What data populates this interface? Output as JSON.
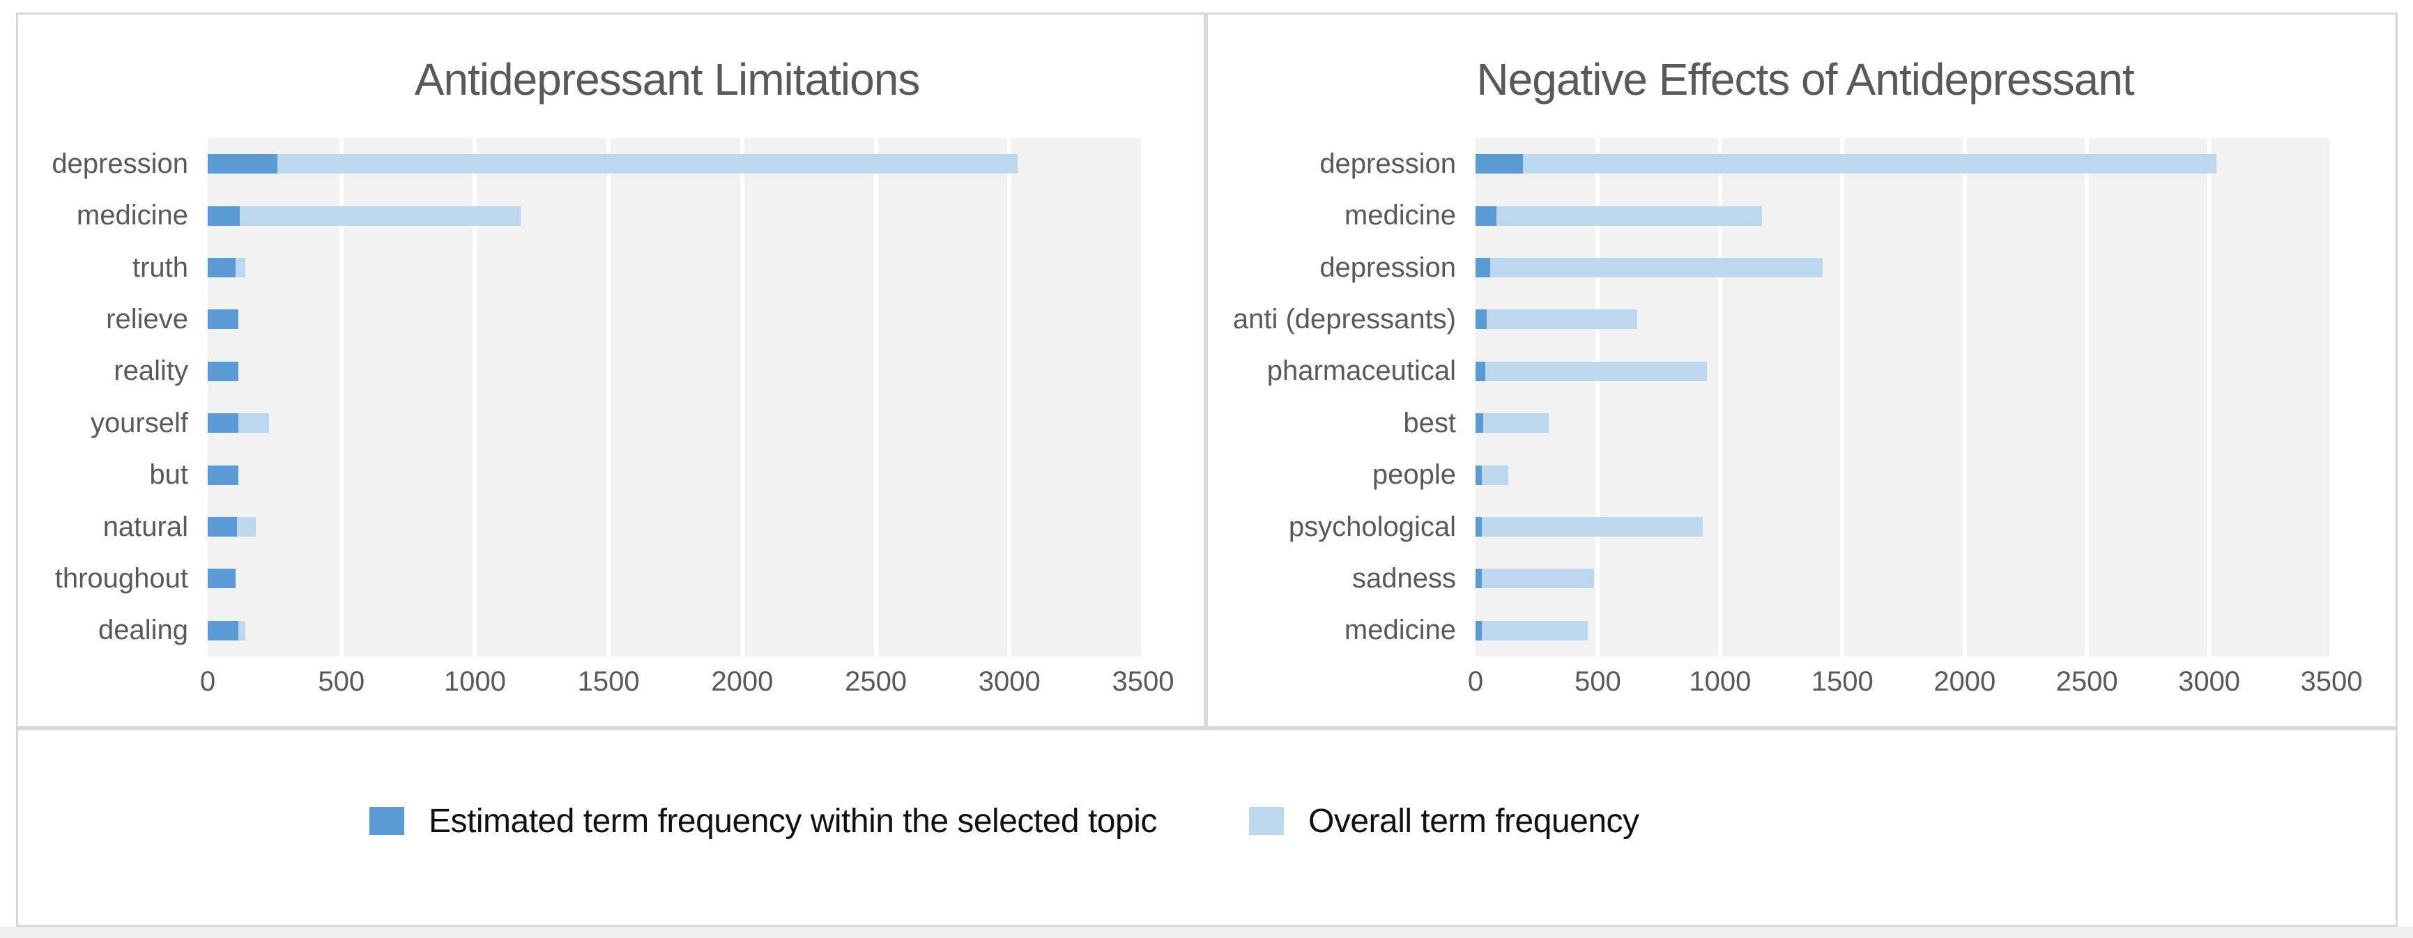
{
  "chart_data": [
    {
      "type": "bar",
      "orientation": "horizontal",
      "title": "Antidepressant Limitations",
      "categories": [
        "depression",
        "medicine",
        "truth",
        "relieve",
        "reality",
        "yourself",
        "but",
        "natural",
        "throughout",
        "dealing"
      ],
      "series": [
        {
          "name": "Estimated term frequency within the selected topic",
          "color": "#5B9BD5",
          "values": [
            260,
            120,
            105,
            115,
            115,
            115,
            115,
            110,
            105,
            115
          ]
        },
        {
          "name": "Overall term frequency",
          "color": "#BDD7EE",
          "values": [
            3030,
            1170,
            140,
            115,
            115,
            230,
            115,
            180,
            105,
            140
          ]
        }
      ],
      "xlabel": "",
      "ylabel": "",
      "xlim": [
        0,
        3500
      ],
      "x_ticks": [
        "0",
        "500",
        "1000",
        "1500",
        "2000",
        "2500",
        "3000",
        "3500"
      ],
      "grid": true,
      "gridline_color": "#FFFFFF",
      "plot_background": "#F2F2F2",
      "legend_position": "bottom"
    },
    {
      "type": "bar",
      "orientation": "horizontal",
      "title": "Negative Effects of Antidepressant",
      "categories": [
        "depression",
        "medicine",
        "depression",
        "anti (depressants)",
        "pharmaceutical",
        "best",
        "people",
        "psychological",
        "sadness",
        "medicine"
      ],
      "series": [
        {
          "name": "Estimated term frequency within the selected topic",
          "color": "#5B9BD5",
          "values": [
            195,
            85,
            60,
            45,
            40,
            30,
            25,
            25,
            25,
            25
          ]
        },
        {
          "name": "Overall term frequency",
          "color": "#BDD7EE",
          "values": [
            3030,
            1170,
            1420,
            660,
            945,
            300,
            135,
            930,
            485,
            460
          ]
        }
      ],
      "xlabel": "",
      "ylabel": "",
      "xlim": [
        0,
        3500
      ],
      "x_ticks": [
        "0",
        "500",
        "1000",
        "1500",
        "2000",
        "2500",
        "3000",
        "3500"
      ],
      "grid": true,
      "gridline_color": "#FFFFFF",
      "plot_background": "#F2F2F2",
      "legend_position": "bottom"
    }
  ],
  "legend": {
    "items": [
      {
        "label": "Estimated term frequency within the selected topic",
        "color": "#5B9BD5"
      },
      {
        "label": "Overall term frequency",
        "color": "#BDD7EE"
      }
    ]
  },
  "colors": {
    "topic_bar": "#5B9BD5",
    "overall_bar": "#BDD7EE",
    "plot_background": "#F2F2F2",
    "panel_border": "#D9D9D9",
    "text": "#595959"
  }
}
